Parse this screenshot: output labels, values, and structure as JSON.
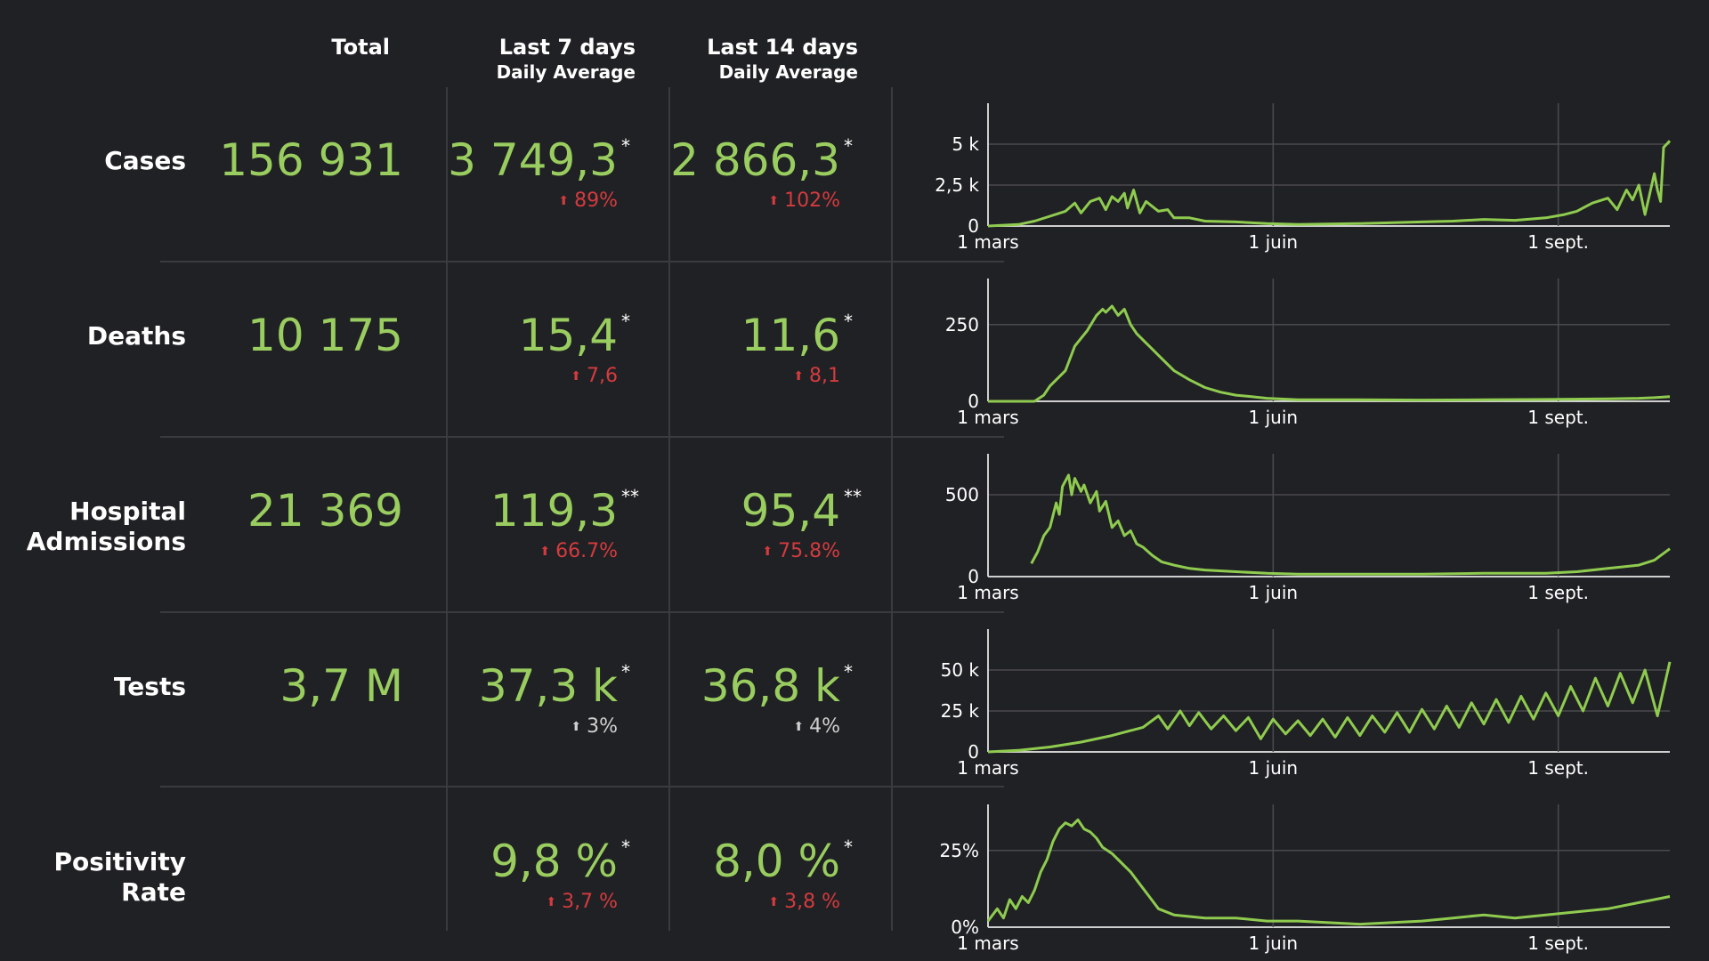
{
  "headers": {
    "total": "Total",
    "last7_title": "Last 7 days",
    "last7_sub": "Daily Average",
    "last14_title": "Last 14 days",
    "last14_sub": "Daily Average"
  },
  "colors": {
    "background": "#202124",
    "value_green": "#9acd5f",
    "increase_red": "#d33b3f",
    "increase_neutral": "#d0d0d0",
    "grid": "#3a3b3e"
  },
  "rows": [
    {
      "label": "Cases",
      "total": "156 931",
      "avg7": "3 749,3",
      "avg7_mark": "*",
      "avg7_change": "89%",
      "avg7_change_color": "red",
      "avg14": "2 866,3",
      "avg14_mark": "*",
      "avg14_change": "102%",
      "avg14_change_color": "red"
    },
    {
      "label": "Deaths",
      "total": "10 175",
      "avg7": "15,4",
      "avg7_mark": "*",
      "avg7_change": "7,6",
      "avg7_change_color": "red",
      "avg14": "11,6",
      "avg14_mark": "*",
      "avg14_change": "8,1",
      "avg14_change_color": "red"
    },
    {
      "label": "Hospital Admissions",
      "total": "21 369",
      "avg7": "119,3",
      "avg7_mark": "**",
      "avg7_change": "66.7%",
      "avg7_change_color": "red",
      "avg14": "95,4",
      "avg14_mark": "**",
      "avg14_change": "75.8%",
      "avg14_change_color": "red"
    },
    {
      "label": "Tests",
      "total": "3,7 M",
      "avg7": "37,3 k",
      "avg7_mark": "*",
      "avg7_change": "3%",
      "avg7_change_color": "neutral",
      "avg14": "36,8 k",
      "avg14_mark": "*",
      "avg14_change": "4%",
      "avg14_change_color": "neutral"
    },
    {
      "label": "Positivity Rate",
      "total": "",
      "avg7": "9,8 %",
      "avg7_mark": "*",
      "avg7_change": "3,7 %",
      "avg7_change_color": "red",
      "avg14": "8,0 %",
      "avg14_mark": "*",
      "avg14_change": "3,8 %",
      "avg14_change_color": "red"
    }
  ],
  "chart_data": [
    {
      "type": "line",
      "series_label": "Cases",
      "x": [
        "1 mars",
        "1 juin",
        "1 sept."
      ],
      "x_positions_days": [
        0,
        92,
        184
      ],
      "x_range_days": [
        0,
        220
      ],
      "yticks": [
        0,
        2500,
        5000
      ],
      "ytick_labels": [
        "0",
        "2,5 k",
        "5 k"
      ],
      "ylim": [
        0,
        7500
      ],
      "points": [
        [
          0,
          0
        ],
        [
          10,
          100
        ],
        [
          15,
          300
        ],
        [
          20,
          600
        ],
        [
          25,
          900
        ],
        [
          28,
          1400
        ],
        [
          30,
          800
        ],
        [
          33,
          1500
        ],
        [
          36,
          1700
        ],
        [
          38,
          1000
        ],
        [
          40,
          1800
        ],
        [
          42,
          1500
        ],
        [
          44,
          2000
        ],
        [
          45,
          1100
        ],
        [
          47,
          2200
        ],
        [
          49,
          800
        ],
        [
          51,
          1500
        ],
        [
          53,
          1200
        ],
        [
          55,
          900
        ],
        [
          58,
          1000
        ],
        [
          60,
          500
        ],
        [
          65,
          500
        ],
        [
          70,
          300
        ],
        [
          80,
          250
        ],
        [
          90,
          150
        ],
        [
          100,
          100
        ],
        [
          120,
          150
        ],
        [
          140,
          250
        ],
        [
          150,
          300
        ],
        [
          160,
          400
        ],
        [
          170,
          350
        ],
        [
          180,
          500
        ],
        [
          186,
          700
        ],
        [
          190,
          900
        ],
        [
          195,
          1400
        ],
        [
          200,
          1700
        ],
        [
          203,
          1000
        ],
        [
          206,
          2200
        ],
        [
          208,
          1600
        ],
        [
          210,
          2500
        ],
        [
          212,
          700
        ],
        [
          215,
          3200
        ],
        [
          216,
          2200
        ],
        [
          217,
          1500
        ],
        [
          218,
          4800
        ],
        [
          219,
          5000
        ],
        [
          220,
          5200
        ]
      ]
    },
    {
      "type": "line",
      "series_label": "Deaths",
      "x": [
        "1 mars",
        "1 juin",
        "1 sept."
      ],
      "x_positions_days": [
        0,
        92,
        184
      ],
      "x_range_days": [
        0,
        220
      ],
      "yticks": [
        0,
        250
      ],
      "ytick_labels": [
        "0",
        "250"
      ],
      "ylim": [
        0,
        400
      ],
      "points": [
        [
          0,
          0
        ],
        [
          15,
          0
        ],
        [
          18,
          20
        ],
        [
          20,
          50
        ],
        [
          25,
          100
        ],
        [
          28,
          180
        ],
        [
          32,
          230
        ],
        [
          35,
          280
        ],
        [
          37,
          300
        ],
        [
          38,
          290
        ],
        [
          40,
          310
        ],
        [
          42,
          280
        ],
        [
          44,
          300
        ],
        [
          46,
          250
        ],
        [
          48,
          220
        ],
        [
          50,
          200
        ],
        [
          52,
          180
        ],
        [
          55,
          150
        ],
        [
          60,
          100
        ],
        [
          65,
          70
        ],
        [
          70,
          45
        ],
        [
          75,
          30
        ],
        [
          80,
          20
        ],
        [
          85,
          15
        ],
        [
          90,
          10
        ],
        [
          100,
          5
        ],
        [
          120,
          5
        ],
        [
          140,
          4
        ],
        [
          160,
          5
        ],
        [
          180,
          6
        ],
        [
          200,
          8
        ],
        [
          210,
          10
        ],
        [
          215,
          12
        ],
        [
          220,
          15
        ]
      ]
    },
    {
      "type": "line",
      "series_label": "Hospital Admissions",
      "x": [
        "1 mars",
        "1 juin",
        "1 sept."
      ],
      "x_positions_days": [
        0,
        92,
        184
      ],
      "x_range_days": [
        0,
        220
      ],
      "yticks": [
        0,
        500
      ],
      "ytick_labels": [
        "0",
        "500"
      ],
      "ylim": [
        0,
        750
      ],
      "points": [
        [
          14,
          80
        ],
        [
          16,
          150
        ],
        [
          18,
          250
        ],
        [
          20,
          300
        ],
        [
          22,
          450
        ],
        [
          23,
          380
        ],
        [
          24,
          550
        ],
        [
          26,
          620
        ],
        [
          27,
          500
        ],
        [
          28,
          600
        ],
        [
          30,
          520
        ],
        [
          31,
          560
        ],
        [
          33,
          450
        ],
        [
          35,
          520
        ],
        [
          36,
          400
        ],
        [
          38,
          460
        ],
        [
          40,
          300
        ],
        [
          42,
          340
        ],
        [
          44,
          250
        ],
        [
          46,
          280
        ],
        [
          48,
          200
        ],
        [
          50,
          180
        ],
        [
          53,
          130
        ],
        [
          56,
          90
        ],
        [
          60,
          70
        ],
        [
          65,
          50
        ],
        [
          70,
          40
        ],
        [
          80,
          30
        ],
        [
          90,
          20
        ],
        [
          100,
          15
        ],
        [
          120,
          15
        ],
        [
          140,
          15
        ],
        [
          160,
          20
        ],
        [
          175,
          20
        ],
        [
          180,
          20
        ],
        [
          190,
          30
        ],
        [
          200,
          50
        ],
        [
          210,
          70
        ],
        [
          215,
          100
        ],
        [
          220,
          170
        ]
      ]
    },
    {
      "type": "line",
      "series_label": "Tests",
      "x": [
        "1 mars",
        "1 juin",
        "1 sept."
      ],
      "x_positions_days": [
        0,
        92,
        184
      ],
      "x_range_days": [
        0,
        220
      ],
      "yticks": [
        0,
        25000,
        50000
      ],
      "ytick_labels": [
        "0",
        "25 k",
        "50 k"
      ],
      "ylim": [
        0,
        75000
      ],
      "points": [
        [
          0,
          0
        ],
        [
          10,
          1000
        ],
        [
          20,
          3000
        ],
        [
          30,
          6000
        ],
        [
          40,
          10000
        ],
        [
          50,
          15000
        ],
        [
          55,
          22000
        ],
        [
          58,
          14000
        ],
        [
          62,
          25000
        ],
        [
          65,
          16000
        ],
        [
          68,
          24000
        ],
        [
          72,
          14000
        ],
        [
          76,
          22000
        ],
        [
          80,
          13000
        ],
        [
          84,
          21000
        ],
        [
          88,
          8000
        ],
        [
          92,
          20000
        ],
        [
          96,
          11000
        ],
        [
          100,
          19000
        ],
        [
          104,
          10000
        ],
        [
          108,
          20000
        ],
        [
          112,
          9000
        ],
        [
          116,
          21000
        ],
        [
          120,
          10000
        ],
        [
          124,
          22000
        ],
        [
          128,
          12000
        ],
        [
          132,
          24000
        ],
        [
          136,
          12000
        ],
        [
          140,
          26000
        ],
        [
          144,
          14000
        ],
        [
          148,
          28000
        ],
        [
          152,
          15000
        ],
        [
          156,
          30000
        ],
        [
          160,
          17000
        ],
        [
          164,
          32000
        ],
        [
          168,
          18000
        ],
        [
          172,
          34000
        ],
        [
          176,
          20000
        ],
        [
          180,
          36000
        ],
        [
          184,
          22000
        ],
        [
          188,
          40000
        ],
        [
          192,
          25000
        ],
        [
          196,
          45000
        ],
        [
          200,
          28000
        ],
        [
          204,
          48000
        ],
        [
          208,
          30000
        ],
        [
          212,
          50000
        ],
        [
          216,
          22000
        ],
        [
          220,
          55000
        ]
      ]
    },
    {
      "type": "line",
      "series_label": "Positivity Rate",
      "x": [
        "1 mars",
        "1 juin",
        "1 sept."
      ],
      "x_positions_days": [
        0,
        92,
        184
      ],
      "x_range_days": [
        0,
        220
      ],
      "yticks": [
        0,
        25
      ],
      "ytick_labels": [
        "0%",
        "25%"
      ],
      "ylim": [
        0,
        40
      ],
      "points": [
        [
          0,
          2
        ],
        [
          3,
          6
        ],
        [
          5,
          3
        ],
        [
          7,
          9
        ],
        [
          9,
          6
        ],
        [
          11,
          10
        ],
        [
          13,
          8
        ],
        [
          15,
          12
        ],
        [
          17,
          18
        ],
        [
          19,
          22
        ],
        [
          21,
          28
        ],
        [
          23,
          32
        ],
        [
          25,
          34
        ],
        [
          27,
          33
        ],
        [
          29,
          35
        ],
        [
          31,
          32
        ],
        [
          33,
          31
        ],
        [
          35,
          29
        ],
        [
          37,
          26
        ],
        [
          40,
          24
        ],
        [
          43,
          21
        ],
        [
          46,
          18
        ],
        [
          49,
          14
        ],
        [
          52,
          10
        ],
        [
          55,
          6
        ],
        [
          60,
          4
        ],
        [
          70,
          3
        ],
        [
          80,
          3
        ],
        [
          90,
          2
        ],
        [
          100,
          2
        ],
        [
          120,
          1
        ],
        [
          140,
          2
        ],
        [
          150,
          3
        ],
        [
          160,
          4
        ],
        [
          170,
          3
        ],
        [
          180,
          4
        ],
        [
          190,
          5
        ],
        [
          200,
          6
        ],
        [
          210,
          8
        ],
        [
          215,
          9
        ],
        [
          220,
          10
        ]
      ]
    }
  ]
}
